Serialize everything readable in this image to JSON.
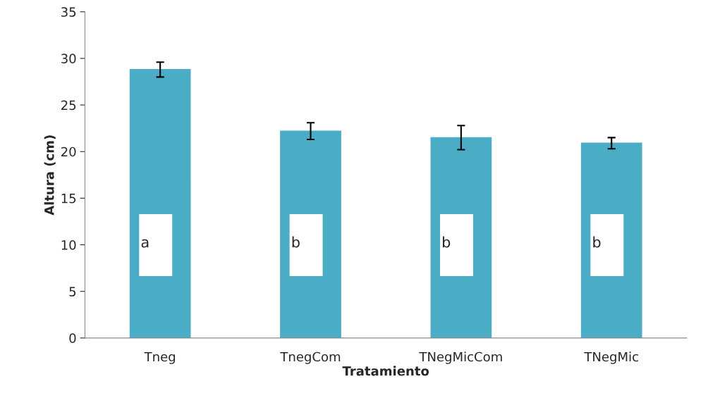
{
  "chart_data": {
    "type": "bar",
    "xlabel": "Tratamiento",
    "ylabel": "Altura (cm)",
    "categories": [
      "Tneg",
      "TnegCom",
      "TNegMicCom",
      "TNegMic"
    ],
    "values": [
      28.8,
      22.2,
      21.5,
      20.9
    ],
    "errors": [
      0.8,
      0.9,
      1.3,
      0.6
    ],
    "color": "#4bacc6",
    "ylim": [
      0,
      35
    ],
    "yticks": [
      0,
      5,
      10,
      15,
      20,
      25,
      30,
      35
    ],
    "grid": false,
    "legend": false,
    "annotations": [
      "a",
      "b",
      "b",
      "b"
    ]
  }
}
